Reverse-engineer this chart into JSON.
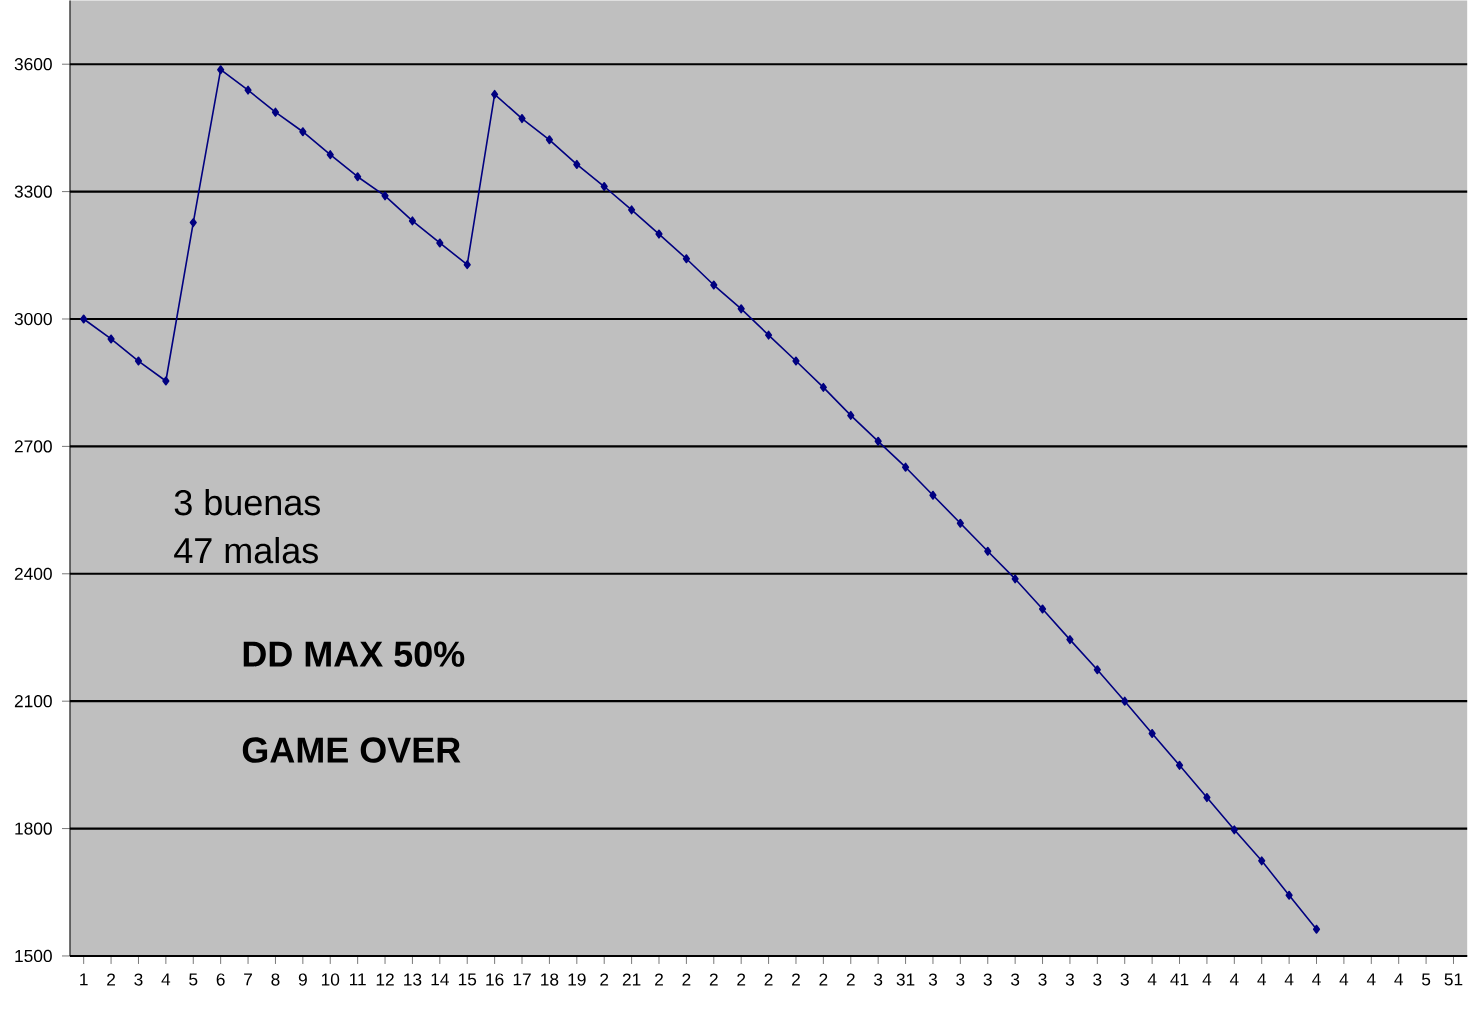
{
  "chart_data": {
    "type": "line",
    "categories": [
      "1",
      "2",
      "3",
      "4",
      "5",
      "6",
      "7",
      "8",
      "9",
      "10",
      "11",
      "12",
      "13",
      "14",
      "15",
      "16",
      "17",
      "18",
      "19",
      "2",
      "21",
      "2",
      "2",
      "2",
      "2",
      "2",
      "2",
      "2",
      "2",
      "3",
      "31",
      "3",
      "3",
      "3",
      "3",
      "3",
      "3",
      "3",
      "3",
      "4",
      "41",
      "4",
      "4",
      "4",
      "4",
      "4",
      "4",
      "4",
      "4",
      "5",
      "51"
    ],
    "values": [
      3000,
      2953,
      2901,
      2854,
      3227,
      3587,
      3539,
      3487,
      3441,
      3387,
      3335,
      3290,
      3231,
      3179,
      3128,
      3529,
      3472,
      3422,
      3364,
      3312,
      3257,
      3200,
      3142,
      3080,
      3024,
      2962,
      2901,
      2839,
      2773,
      2712,
      2651,
      2585,
      2519,
      2453,
      2388,
      2317,
      2245,
      2174,
      2100,
      2024,
      1949,
      1873,
      1797,
      1724,
      1643,
      1563,
      null,
      null,
      null,
      null,
      null
    ],
    "color": "#000080",
    "ylim": [
      1500,
      3750
    ],
    "yticks": [
      1500,
      1800,
      2100,
      2400,
      2700,
      3000,
      3300,
      3600
    ],
    "grid": "y",
    "marker": "diamond",
    "line_style": "solid",
    "annotations": [
      "3 buenas",
      "47 malas",
      "DD MAX 50%",
      "GAME OVER"
    ]
  }
}
